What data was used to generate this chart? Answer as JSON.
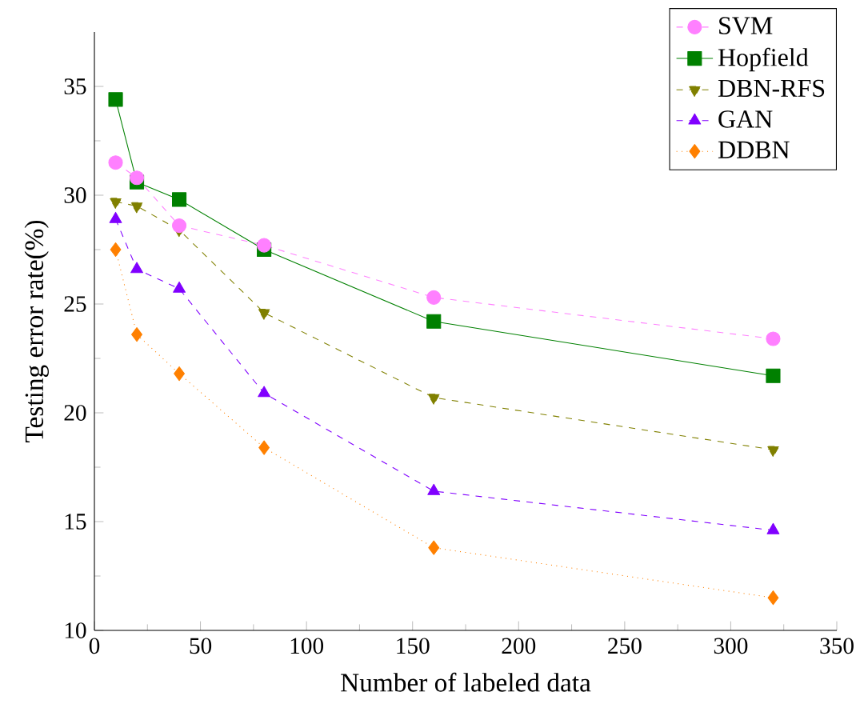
{
  "chart_data": {
    "type": "line",
    "xlabel": "Number of labeled data",
    "ylabel": "Testing error rate(%)",
    "x": [
      10,
      20,
      40,
      80,
      160,
      320
    ],
    "series": [
      {
        "name": "SVM",
        "color": "#ff80ff",
        "marker": "circle",
        "line_style": "dashed",
        "values": [
          31.5,
          30.8,
          28.6,
          27.7,
          25.3,
          23.4
        ]
      },
      {
        "name": "Hopfield",
        "color": "#008000",
        "marker": "square",
        "line_style": "solid",
        "values": [
          34.4,
          30.6,
          29.8,
          27.5,
          24.2,
          21.7
        ]
      },
      {
        "name": "DBN-RFS",
        "color": "#808000",
        "marker": "triangle_down",
        "line_style": "dashed",
        "values": [
          29.7,
          29.5,
          28.4,
          24.6,
          20.7,
          18.3
        ]
      },
      {
        "name": "GAN",
        "color": "#8000ff",
        "marker": "triangle",
        "line_style": "dashed",
        "values": [
          28.9,
          26.6,
          25.7,
          20.9,
          16.4,
          14.6
        ]
      },
      {
        "name": "DDBN",
        "color": "#ff8000",
        "marker": "diamond",
        "line_style": "dotted",
        "values": [
          27.5,
          23.6,
          21.8,
          18.4,
          13.8,
          11.5
        ]
      }
    ],
    "xlim": [
      0,
      350
    ],
    "xticks": [
      0,
      50,
      100,
      150,
      200,
      250,
      300,
      350
    ],
    "ylim": [
      10,
      37.5
    ],
    "yticks": [
      10,
      15,
      20,
      25,
      30,
      35
    ],
    "grid": false,
    "legend": "top right"
  }
}
